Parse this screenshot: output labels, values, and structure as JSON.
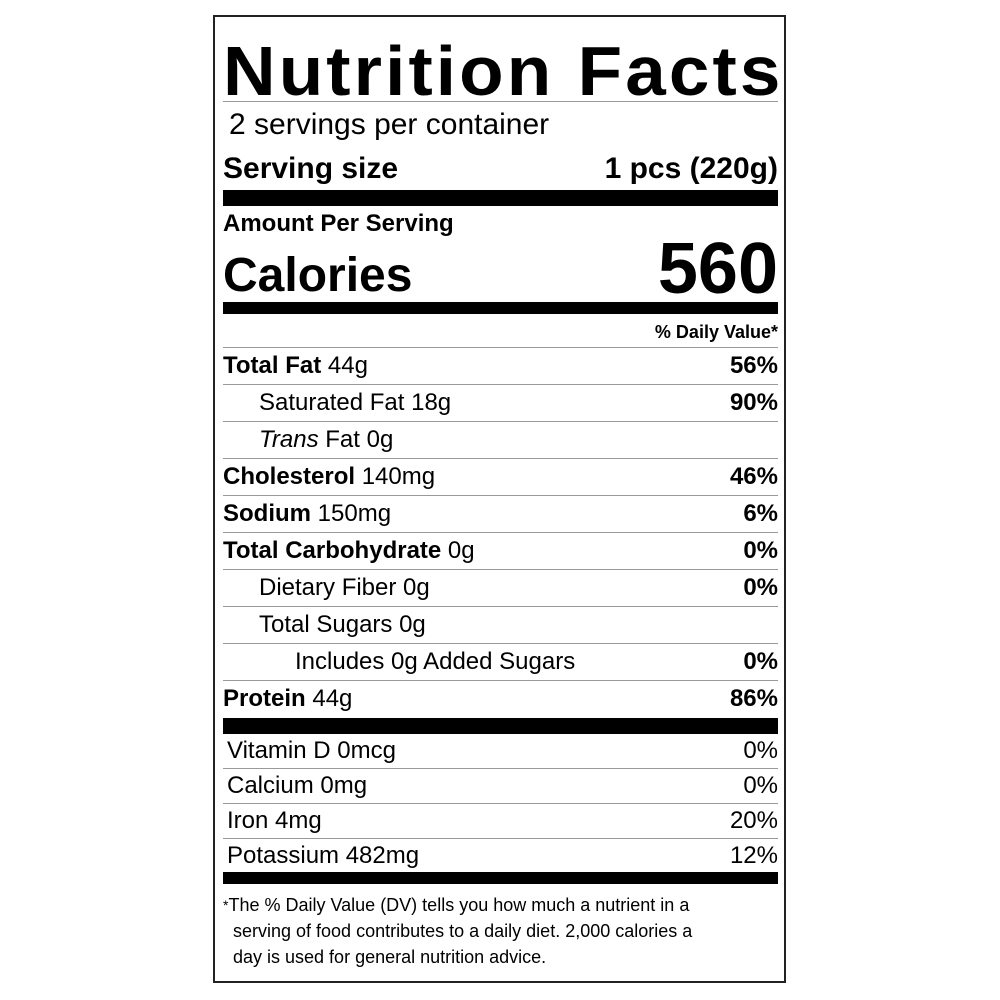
{
  "title": "Nutrition Facts",
  "servings_per_container": "2 servings per container",
  "serving_size": {
    "label": "Serving size",
    "value": "1 pcs (220g)"
  },
  "amount_per_serving": "Amount Per Serving",
  "calories": {
    "label": "Calories",
    "value": "560"
  },
  "daily_value_header": "% Daily Value*",
  "nutrients": [
    {
      "name": "Total Fat",
      "amount": "44g",
      "dv": "56%",
      "bold": true,
      "indent": 0
    },
    {
      "name": "Saturated Fat",
      "amount": "18g",
      "dv": "90%",
      "bold": false,
      "indent": 1
    },
    {
      "name_italic": "Trans",
      "name": "Fat",
      "amount": "0g",
      "dv": "",
      "bold": false,
      "indent": 1
    },
    {
      "name": "Cholesterol",
      "amount": "140mg",
      "dv": "46%",
      "bold": true,
      "indent": 0
    },
    {
      "name": "Sodium",
      "amount": "150mg",
      "dv": "6%",
      "bold": true,
      "indent": 0
    },
    {
      "name": "Total Carbohydrate",
      "amount": "0g",
      "dv": "0%",
      "bold": true,
      "indent": 0
    },
    {
      "name": "Dietary Fiber",
      "amount": "0g",
      "dv": "0%",
      "bold": false,
      "indent": 1
    },
    {
      "name": "Total Sugars",
      "amount": "0g",
      "dv": "",
      "bold": false,
      "indent": 1
    },
    {
      "name": "Includes 0g Added Sugars",
      "amount": "",
      "dv": "0%",
      "bold": false,
      "indent": 2
    },
    {
      "name": "Protein",
      "amount": "44g",
      "dv": "86%",
      "bold": true,
      "indent": 0
    }
  ],
  "vitamins": [
    {
      "name": "Vitamin D 0mcg",
      "dv": "0%"
    },
    {
      "name": "Calcium 0mg",
      "dv": "0%"
    },
    {
      "name": "Iron 4mg",
      "dv": "20%"
    },
    {
      "name": "Potassium 482mg",
      "dv": "12%"
    }
  ],
  "footnote": {
    "marker": "*",
    "lines": [
      "The % Daily Value (DV) tells you how much a nutrient in a",
      "serving of food contributes to a daily diet. 2,000 calories a",
      "day is used for general nutrition advice."
    ]
  }
}
